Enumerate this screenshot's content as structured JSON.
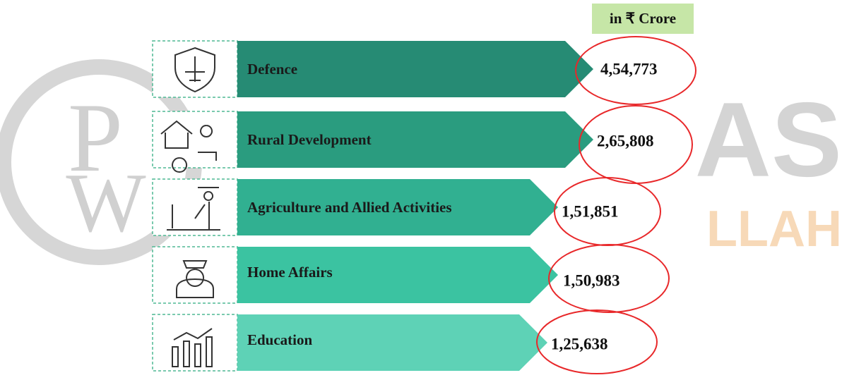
{
  "unit_label": "in ₹ Crore",
  "items": [
    {
      "label": "Defence",
      "value": "4,54,773"
    },
    {
      "label": "Rural Development",
      "value": "2,65,808"
    },
    {
      "label": "Agriculture and Allied Activities",
      "value": "1,51,851"
    },
    {
      "label": "Home Affairs",
      "value": "1,50,983"
    },
    {
      "label": "Education",
      "value": "1,25,638"
    }
  ],
  "watermark": {
    "logo_top": "P",
    "logo_bottom": "W",
    "big": "AS",
    "small": "LLAH"
  }
}
